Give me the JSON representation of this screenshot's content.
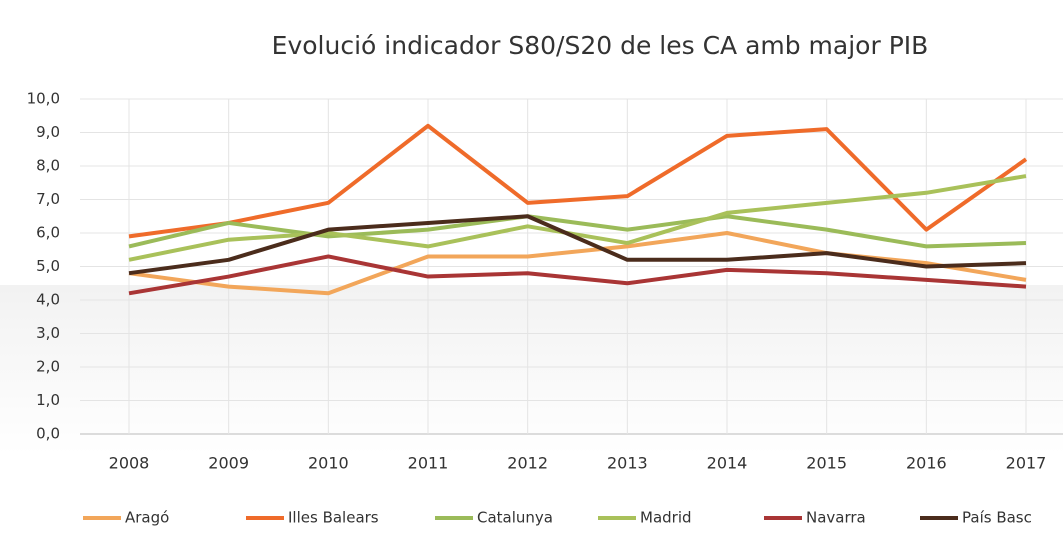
{
  "chart_data": {
    "type": "line",
    "title": "Evolució indicador S80/S20 de les CA amb major PIB",
    "categories": [
      "2008",
      "2009",
      "2010",
      "2011",
      "2012",
      "2013",
      "2014",
      "2015",
      "2016",
      "2017"
    ],
    "series": [
      {
        "name": "Aragó",
        "color": "#f2a65a",
        "values": [
          4.8,
          4.4,
          4.2,
          5.3,
          5.3,
          5.6,
          6.0,
          5.4,
          5.1,
          4.6
        ]
      },
      {
        "name": "Illes Balears",
        "color": "#ef6b2a",
        "values": [
          5.9,
          6.3,
          6.9,
          9.2,
          6.9,
          7.1,
          8.9,
          9.1,
          6.1,
          8.2
        ]
      },
      {
        "name": "Catalunya",
        "color": "#9bbb59",
        "values": [
          5.6,
          6.3,
          5.9,
          6.1,
          6.5,
          6.1,
          6.5,
          6.1,
          5.6,
          5.7
        ]
      },
      {
        "name": "Madrid",
        "color": "#a9c15a",
        "values": [
          5.2,
          5.8,
          6.0,
          5.6,
          6.2,
          5.7,
          6.6,
          6.9,
          7.2,
          7.7
        ]
      },
      {
        "name": "Navarra",
        "color": "#a93535",
        "values": [
          4.2,
          4.7,
          5.3,
          4.7,
          4.8,
          4.5,
          4.9,
          4.8,
          4.6,
          4.4
        ]
      },
      {
        "name": "País Basc",
        "color": "#4b2c1c",
        "values": [
          4.8,
          5.2,
          6.1,
          6.3,
          6.5,
          5.2,
          5.2,
          5.4,
          5.0,
          5.1
        ]
      }
    ],
    "ylim": [
      0,
      10
    ],
    "yticks": [
      {
        "value": 0,
        "label": "0,0"
      },
      {
        "value": 1,
        "label": "1,0"
      },
      {
        "value": 2,
        "label": "2,0"
      },
      {
        "value": 3,
        "label": "3,0"
      },
      {
        "value": 4,
        "label": "4,0"
      },
      {
        "value": 5,
        "label": "5,0"
      },
      {
        "value": 6,
        "label": "6,0"
      },
      {
        "value": 7,
        "label": "7,0"
      },
      {
        "value": 8,
        "label": "8,0"
      },
      {
        "value": 9,
        "label": "9,0"
      },
      {
        "value": 10,
        "label": "10,0"
      }
    ],
    "grid": true,
    "legend": "bottom"
  }
}
